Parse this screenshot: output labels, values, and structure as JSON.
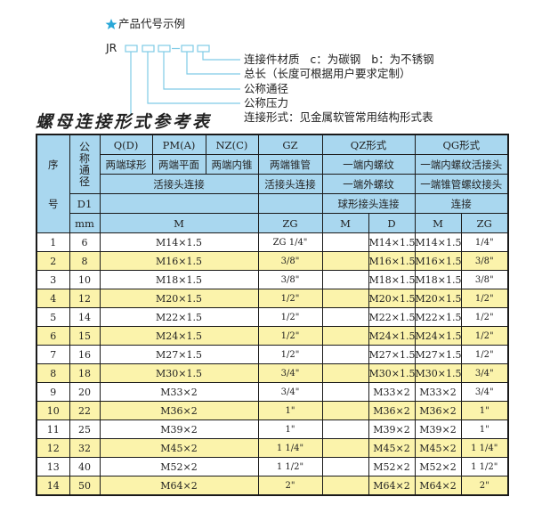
{
  "diagram": {
    "heading": "产品代号示例",
    "prefix": "JR",
    "labels": [
      "连接件材质   c：为碳钢   b：为不锈钢",
      "总长（长度可根据用户要求定制）",
      "公称通径",
      "公称压力",
      "连接形式：见金属软管常用结构形式表"
    ],
    "accent": "#2aa8d8"
  },
  "title": "螺母连接形式参考表",
  "header": {
    "seq": "序",
    "seq2": "号",
    "dn": "公称通径",
    "d1": "D1",
    "mm": "mm",
    "r1": [
      "Q(D)",
      "PM(A)",
      "NZ(C)",
      "GZ",
      "QZ形式",
      "QG形式"
    ],
    "r2": [
      "两端球形",
      "两端平面",
      "两端内锥",
      "两端锥管",
      "一端内螺纹",
      "一端内螺纹活接头"
    ],
    "r3": [
      "活接头连接",
      "活接头连接",
      "一端外螺纹",
      "一端锥管螺纹接头"
    ],
    "r4": [
      "球形接头连接",
      "连接"
    ],
    "r5": [
      "M",
      "ZG",
      "M",
      "D",
      "M",
      "ZG"
    ]
  },
  "rows": [
    {
      "no": "1",
      "dn": "6",
      "m": "M14×1.5",
      "zg": "ZG 1/4\"",
      "qz_m": "",
      "d": "M14×1.5",
      "qg_m": "M14×1.5",
      "qg_zg": "1/4\""
    },
    {
      "no": "2",
      "dn": "8",
      "m": "M16×1.5",
      "zg": "3/8\"",
      "qz_m": "",
      "d": "M16×1.5",
      "qg_m": "M16×1.5",
      "qg_zg": "3/8\""
    },
    {
      "no": "3",
      "dn": "10",
      "m": "M18×1.5",
      "zg": "3/8\"",
      "qz_m": "",
      "d": "M18×1.5",
      "qg_m": "M18×1.5",
      "qg_zg": "3/8\""
    },
    {
      "no": "4",
      "dn": "12",
      "m": "M20×1.5",
      "zg": "1/2\"",
      "qz_m": "",
      "d": "M20×1.5",
      "qg_m": "M20×1.5",
      "qg_zg": "1/2\""
    },
    {
      "no": "5",
      "dn": "14",
      "m": "M22×1.5",
      "zg": "1/2\"",
      "qz_m": "",
      "d": "M22×1.5",
      "qg_m": "M22×1.5",
      "qg_zg": "1/2\""
    },
    {
      "no": "6",
      "dn": "15",
      "m": "M24×1.5",
      "zg": "1/2\"",
      "qz_m": "",
      "d": "M24×1.5",
      "qg_m": "M24×1.5",
      "qg_zg": "1/2\""
    },
    {
      "no": "7",
      "dn": "16",
      "m": "M27×1.5",
      "zg": "1/2\"",
      "qz_m": "",
      "d": "M27×1.5",
      "qg_m": "M27×1.5",
      "qg_zg": "1/2\""
    },
    {
      "no": "8",
      "dn": "18",
      "m": "M30×1.5",
      "zg": "3/4\"",
      "qz_m": "",
      "d": "M30×1.5",
      "qg_m": "M30×1.5",
      "qg_zg": "3/4\""
    },
    {
      "no": "9",
      "dn": "20",
      "m": "M33×2",
      "zg": "3/4\"",
      "qz_m": "",
      "d": "M33×2",
      "qg_m": "M33×2",
      "qg_zg": "3/4\""
    },
    {
      "no": "10",
      "dn": "22",
      "m": "M36×2",
      "zg": "1\"",
      "qz_m": "",
      "d": "M36×2",
      "qg_m": "M36×2",
      "qg_zg": "1\""
    },
    {
      "no": "11",
      "dn": "25",
      "m": "M39×2",
      "zg": "1\"",
      "qz_m": "",
      "d": "M39×2",
      "qg_m": "M39×2",
      "qg_zg": "1\""
    },
    {
      "no": "12",
      "dn": "32",
      "m": "M45×2",
      "zg": "1 1/4\"",
      "qz_m": "",
      "d": "M45×2",
      "qg_m": "M45×2",
      "qg_zg": "1 1/4\""
    },
    {
      "no": "13",
      "dn": "40",
      "m": "M52×2",
      "zg": "1 1/2\"",
      "qz_m": "",
      "d": "M52×2",
      "qg_m": "M52×2",
      "qg_zg": "1 1/2\""
    },
    {
      "no": "14",
      "dn": "50",
      "m": "M64×2",
      "zg": "2\"",
      "qz_m": "",
      "d": "M64×2",
      "qg_m": "M64×2",
      "qg_zg": "2\""
    }
  ],
  "colors": {
    "header_bg": "#a9d7ef",
    "alt_row": "#fbf3ab"
  }
}
